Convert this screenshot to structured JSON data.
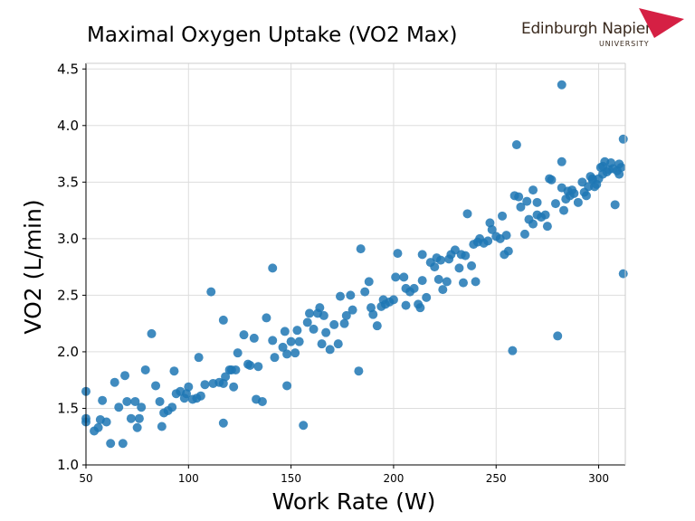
{
  "header": {
    "title": "Maximal Oxygen Uptake (VO2 Max)"
  },
  "logo": {
    "name": "Edinburgh Napier",
    "sub": "UNIVERSITY",
    "color": "#d52044"
  },
  "chart_data": {
    "type": "scatter",
    "title": "Maximal Oxygen Uptake (VO2 Max)",
    "xlabel": "Work Rate (W)",
    "ylabel": "VO2  (L/min)",
    "xlim": [
      50,
      313
    ],
    "ylim": [
      1.0,
      4.55
    ],
    "xticks": [
      "50",
      "100",
      "150",
      "200",
      "250",
      "300"
    ],
    "yticks": [
      "1.0",
      "1.5",
      "2.0",
      "2.5",
      "3.0",
      "3.5",
      "4.0",
      "4.5"
    ],
    "grid": true,
    "marker_color": "#1f77b4",
    "points": [
      [
        50,
        1.65
      ],
      [
        50,
        1.41
      ],
      [
        50,
        1.38
      ],
      [
        54,
        1.3
      ],
      [
        56,
        1.33
      ],
      [
        57,
        1.4
      ],
      [
        58,
        1.57
      ],
      [
        60,
        1.38
      ],
      [
        62,
        1.19
      ],
      [
        64,
        1.73
      ],
      [
        66,
        1.51
      ],
      [
        68,
        1.19
      ],
      [
        69,
        1.79
      ],
      [
        70,
        1.56
      ],
      [
        72,
        1.41
      ],
      [
        74,
        1.56
      ],
      [
        75,
        1.33
      ],
      [
        76,
        1.41
      ],
      [
        77,
        1.51
      ],
      [
        79,
        1.84
      ],
      [
        82,
        2.16
      ],
      [
        84,
        1.7
      ],
      [
        86,
        1.56
      ],
      [
        87,
        1.34
      ],
      [
        88,
        1.46
      ],
      [
        90,
        1.48
      ],
      [
        92,
        1.51
      ],
      [
        93,
        1.83
      ],
      [
        94,
        1.63
      ],
      [
        96,
        1.65
      ],
      [
        98,
        1.59
      ],
      [
        99,
        1.63
      ],
      [
        100,
        1.69
      ],
      [
        102,
        1.58
      ],
      [
        104,
        1.59
      ],
      [
        105,
        1.95
      ],
      [
        106,
        1.61
      ],
      [
        108,
        1.71
      ],
      [
        111,
        2.53
      ],
      [
        112,
        1.72
      ],
      [
        115,
        1.73
      ],
      [
        117,
        1.72
      ],
      [
        117,
        2.28
      ],
      [
        118,
        1.78
      ],
      [
        120,
        1.84
      ],
      [
        121,
        1.84
      ],
      [
        122,
        1.69
      ],
      [
        123,
        1.84
      ],
      [
        124,
        1.99
      ],
      [
        117,
        1.37
      ],
      [
        127,
        2.15
      ],
      [
        129,
        1.89
      ],
      [
        130,
        1.88
      ],
      [
        132,
        2.12
      ],
      [
        133,
        1.58
      ],
      [
        134,
        1.87
      ],
      [
        136,
        1.56
      ],
      [
        138,
        2.3
      ],
      [
        141,
        2.74
      ],
      [
        141,
        2.1
      ],
      [
        142,
        1.95
      ],
      [
        146,
        2.04
      ],
      [
        147,
        2.18
      ],
      [
        148,
        1.7
      ],
      [
        148,
        1.98
      ],
      [
        150,
        2.09
      ],
      [
        152,
        1.99
      ],
      [
        153,
        2.19
      ],
      [
        154,
        2.09
      ],
      [
        156,
        1.35
      ],
      [
        158,
        2.26
      ],
      [
        159,
        2.34
      ],
      [
        161,
        2.2
      ],
      [
        163,
        2.34
      ],
      [
        164,
        2.39
      ],
      [
        165,
        2.07
      ],
      [
        166,
        2.32
      ],
      [
        167,
        2.17
      ],
      [
        169,
        2.02
      ],
      [
        171,
        2.24
      ],
      [
        173,
        2.07
      ],
      [
        174,
        2.49
      ],
      [
        176,
        2.25
      ],
      [
        177,
        2.32
      ],
      [
        179,
        2.5
      ],
      [
        180,
        2.37
      ],
      [
        183,
        1.83
      ],
      [
        184,
        2.91
      ],
      [
        186,
        2.53
      ],
      [
        188,
        2.62
      ],
      [
        189,
        2.39
      ],
      [
        190,
        2.33
      ],
      [
        192,
        2.23
      ],
      [
        194,
        2.4
      ],
      [
        195,
        2.46
      ],
      [
        196,
        2.42
      ],
      [
        198,
        2.44
      ],
      [
        200,
        2.46
      ],
      [
        201,
        2.66
      ],
      [
        202,
        2.87
      ],
      [
        205,
        2.66
      ],
      [
        206,
        2.56
      ],
      [
        206,
        2.41
      ],
      [
        208,
        2.53
      ],
      [
        210,
        2.56
      ],
      [
        212,
        2.42
      ],
      [
        213,
        2.39
      ],
      [
        214,
        2.86
      ],
      [
        214,
        2.63
      ],
      [
        216,
        2.48
      ],
      [
        218,
        2.79
      ],
      [
        220,
        2.75
      ],
      [
        221,
        2.83
      ],
      [
        222,
        2.64
      ],
      [
        223,
        2.81
      ],
      [
        224,
        2.55
      ],
      [
        226,
        2.62
      ],
      [
        227,
        2.82
      ],
      [
        228,
        2.86
      ],
      [
        230,
        2.9
      ],
      [
        232,
        2.74
      ],
      [
        233,
        2.86
      ],
      [
        234,
        2.61
      ],
      [
        235,
        2.85
      ],
      [
        236,
        3.22
      ],
      [
        238,
        2.76
      ],
      [
        239,
        2.95
      ],
      [
        240,
        2.62
      ],
      [
        241,
        2.97
      ],
      [
        242,
        3.0
      ],
      [
        244,
        2.96
      ],
      [
        246,
        2.98
      ],
      [
        247,
        3.14
      ],
      [
        248,
        3.08
      ],
      [
        250,
        3.02
      ],
      [
        252,
        3.0
      ],
      [
        253,
        3.2
      ],
      [
        254,
        2.86
      ],
      [
        255,
        3.03
      ],
      [
        256,
        2.89
      ],
      [
        258,
        2.01
      ],
      [
        259,
        3.38
      ],
      [
        260,
        3.83
      ],
      [
        261,
        3.37
      ],
      [
        262,
        3.28
      ],
      [
        264,
        3.04
      ],
      [
        265,
        3.33
      ],
      [
        266,
        3.17
      ],
      [
        268,
        3.43
      ],
      [
        268,
        3.13
      ],
      [
        270,
        3.32
      ],
      [
        270,
        3.21
      ],
      [
        272,
        3.19
      ],
      [
        274,
        3.21
      ],
      [
        275,
        3.11
      ],
      [
        276,
        3.53
      ],
      [
        277,
        3.52
      ],
      [
        279,
        3.31
      ],
      [
        280,
        2.14
      ],
      [
        282,
        4.36
      ],
      [
        282,
        3.45
      ],
      [
        282,
        3.68
      ],
      [
        283,
        3.25
      ],
      [
        284,
        3.35
      ],
      [
        285,
        3.42
      ],
      [
        286,
        3.38
      ],
      [
        287,
        3.43
      ],
      [
        288,
        3.4
      ],
      [
        290,
        3.32
      ],
      [
        292,
        3.5
      ],
      [
        293,
        3.41
      ],
      [
        294,
        3.38
      ],
      [
        295,
        3.46
      ],
      [
        296,
        3.55
      ],
      [
        297,
        3.52
      ],
      [
        298,
        3.46
      ],
      [
        299,
        3.48
      ],
      [
        300,
        3.53
      ],
      [
        301,
        3.63
      ],
      [
        302,
        3.57
      ],
      [
        303,
        3.68
      ],
      [
        304,
        3.59
      ],
      [
        305,
        3.61
      ],
      [
        306,
        3.67
      ],
      [
        307,
        3.62
      ],
      [
        308,
        3.3
      ],
      [
        309,
        3.6
      ],
      [
        310,
        3.66
      ],
      [
        310,
        3.57
      ],
      [
        311,
        3.63
      ],
      [
        312,
        3.88
      ],
      [
        312,
        2.69
      ],
      [
        302,
        3.64
      ],
      [
        297,
        3.53
      ]
    ]
  }
}
